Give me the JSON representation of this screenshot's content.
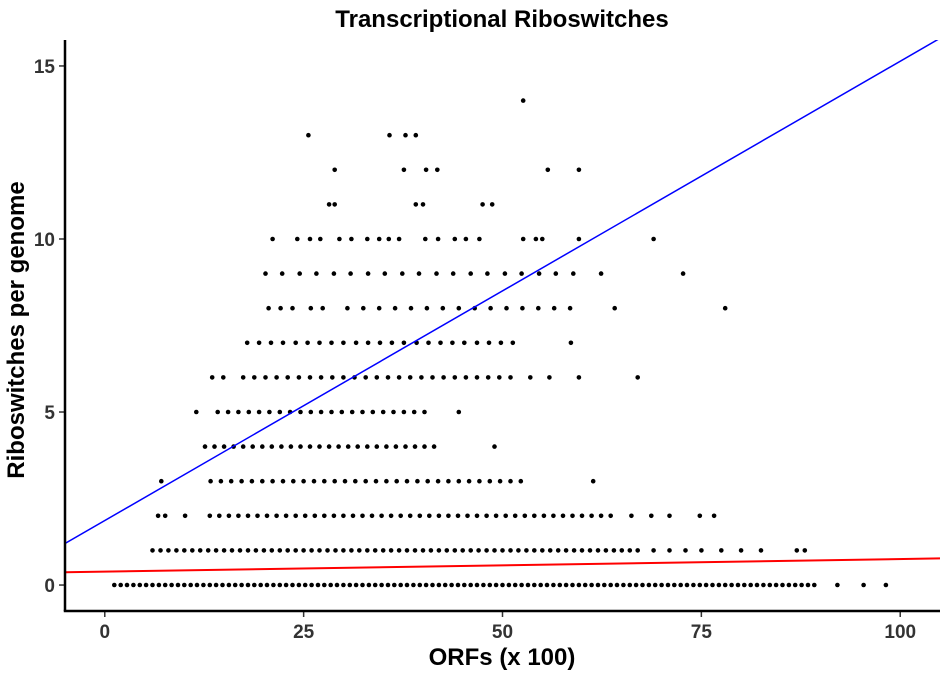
{
  "chart_data": {
    "type": "scatter",
    "title": "Transcriptional Riboswitches",
    "xlabel": "ORFs (x 100)",
    "ylabel": "Riboswitches per genome",
    "xlim": [
      -5,
      105
    ],
    "ylim": [
      -0.75,
      15.75
    ],
    "x_ticks": [
      0,
      25,
      50,
      75,
      100
    ],
    "y_ticks": [
      0,
      5,
      10,
      15
    ],
    "grid": false,
    "legend": "none",
    "point_color": "#000000",
    "lines": [
      {
        "color": "#0000ff",
        "x": [
          -5,
          105
        ],
        "y": [
          1.2,
          15.8
        ]
      },
      {
        "color": "#ff0000",
        "x": [
          -5,
          105
        ],
        "y": [
          0.37,
          0.77
        ]
      }
    ],
    "points": [
      [
        52.6,
        14
      ],
      [
        25.6,
        13
      ],
      [
        35.8,
        13
      ],
      [
        37.8,
        13
      ],
      [
        39.1,
        13
      ],
      [
        28.9,
        12
      ],
      [
        37.6,
        12
      ],
      [
        40.4,
        12
      ],
      [
        41.8,
        12
      ],
      [
        55.7,
        12
      ],
      [
        59.6,
        12
      ],
      [
        28.2,
        11
      ],
      [
        28.9,
        11
      ],
      [
        39.1,
        11
      ],
      [
        40.0,
        11
      ],
      [
        47.5,
        11
      ],
      [
        48.7,
        11
      ],
      [
        21.1,
        10
      ],
      [
        24.2,
        10
      ],
      [
        25.8,
        10
      ],
      [
        27.1,
        10
      ],
      [
        29.5,
        10
      ],
      [
        31.0,
        10
      ],
      [
        33.0,
        10
      ],
      [
        34.5,
        10
      ],
      [
        35.7,
        10
      ],
      [
        37.0,
        10
      ],
      [
        40.3,
        10
      ],
      [
        41.9,
        10
      ],
      [
        44.0,
        10
      ],
      [
        45.4,
        10
      ],
      [
        47.1,
        10
      ],
      [
        52.6,
        10
      ],
      [
        54.2,
        10
      ],
      [
        55.0,
        10
      ],
      [
        59.6,
        10
      ],
      [
        69.0,
        10
      ],
      [
        20.2,
        9
      ],
      [
        22.3,
        9
      ],
      [
        24.5,
        9
      ],
      [
        26.6,
        9
      ],
      [
        28.8,
        9
      ],
      [
        30.9,
        9
      ],
      [
        33.1,
        9
      ],
      [
        35.2,
        9
      ],
      [
        37.4,
        9
      ],
      [
        39.5,
        9
      ],
      [
        41.7,
        9
      ],
      [
        43.8,
        9
      ],
      [
        46.0,
        9
      ],
      [
        48.1,
        9
      ],
      [
        50.3,
        9
      ],
      [
        52.4,
        9
      ],
      [
        54.6,
        9
      ],
      [
        56.7,
        9
      ],
      [
        58.9,
        9
      ],
      [
        62.4,
        9
      ],
      [
        72.7,
        9
      ],
      [
        20.6,
        8
      ],
      [
        22.1,
        8
      ],
      [
        23.6,
        8
      ],
      [
        25.9,
        8
      ],
      [
        27.4,
        8
      ],
      [
        30.5,
        8
      ],
      [
        32.5,
        8
      ],
      [
        34.5,
        8
      ],
      [
        36.5,
        8
      ],
      [
        38.5,
        8
      ],
      [
        40.5,
        8
      ],
      [
        42.5,
        8
      ],
      [
        44.5,
        8
      ],
      [
        46.5,
        8
      ],
      [
        48.5,
        8
      ],
      [
        50.5,
        8
      ],
      [
        52.5,
        8
      ],
      [
        54.5,
        8
      ],
      [
        56.5,
        8
      ],
      [
        58.5,
        8
      ],
      [
        64.1,
        8
      ],
      [
        78.0,
        8
      ],
      [
        17.9,
        7
      ],
      [
        19.4,
        7
      ],
      [
        20.9,
        7
      ],
      [
        22.4,
        7
      ],
      [
        24.0,
        7
      ],
      [
        25.5,
        7
      ],
      [
        27.0,
        7
      ],
      [
        28.5,
        7
      ],
      [
        30.0,
        7
      ],
      [
        31.6,
        7
      ],
      [
        33.1,
        7
      ],
      [
        34.6,
        7
      ],
      [
        36.1,
        7
      ],
      [
        37.6,
        7
      ],
      [
        39.2,
        7
      ],
      [
        40.7,
        7
      ],
      [
        42.2,
        7
      ],
      [
        43.7,
        7
      ],
      [
        45.2,
        7
      ],
      [
        46.8,
        7
      ],
      [
        48.3,
        7
      ],
      [
        49.8,
        7
      ],
      [
        51.3,
        7
      ],
      [
        58.6,
        7
      ],
      [
        13.5,
        6
      ],
      [
        14.9,
        6
      ],
      [
        17.4,
        6
      ],
      [
        18.8,
        6
      ],
      [
        20.2,
        6
      ],
      [
        21.6,
        6
      ],
      [
        23.0,
        6
      ],
      [
        24.4,
        6
      ],
      [
        25.8,
        6
      ],
      [
        27.2,
        6
      ],
      [
        28.6,
        6
      ],
      [
        30.0,
        6
      ],
      [
        31.4,
        6
      ],
      [
        32.8,
        6
      ],
      [
        34.2,
        6
      ],
      [
        35.6,
        6
      ],
      [
        37.0,
        6
      ],
      [
        38.4,
        6
      ],
      [
        39.8,
        6
      ],
      [
        41.2,
        6
      ],
      [
        42.6,
        6
      ],
      [
        44.0,
        6
      ],
      [
        45.4,
        6
      ],
      [
        46.8,
        6
      ],
      [
        48.2,
        6
      ],
      [
        49.6,
        6
      ],
      [
        51.0,
        6
      ],
      [
        53.5,
        6
      ],
      [
        55.9,
        6
      ],
      [
        59.6,
        6
      ],
      [
        67.0,
        6
      ],
      [
        11.5,
        5
      ],
      [
        14.2,
        5
      ],
      [
        15.5,
        5
      ],
      [
        16.8,
        5
      ],
      [
        18.1,
        5
      ],
      [
        19.4,
        5
      ],
      [
        20.7,
        5
      ],
      [
        22.0,
        5
      ],
      [
        23.3,
        5
      ],
      [
        24.6,
        5
      ],
      [
        25.9,
        5
      ],
      [
        27.2,
        5
      ],
      [
        28.5,
        5
      ],
      [
        29.8,
        5
      ],
      [
        31.1,
        5
      ],
      [
        32.4,
        5
      ],
      [
        33.7,
        5
      ],
      [
        35.0,
        5
      ],
      [
        36.3,
        5
      ],
      [
        37.6,
        5
      ],
      [
        38.9,
        5
      ],
      [
        40.2,
        5
      ],
      [
        44.5,
        5
      ],
      [
        12.6,
        4
      ],
      [
        13.8,
        4
      ],
      [
        15.0,
        4
      ],
      [
        16.2,
        4
      ],
      [
        17.4,
        4
      ],
      [
        18.6,
        4
      ],
      [
        19.8,
        4
      ],
      [
        21.0,
        4
      ],
      [
        22.2,
        4
      ],
      [
        23.4,
        4
      ],
      [
        24.6,
        4
      ],
      [
        25.8,
        4
      ],
      [
        27.0,
        4
      ],
      [
        28.2,
        4
      ],
      [
        29.4,
        4
      ],
      [
        30.6,
        4
      ],
      [
        31.8,
        4
      ],
      [
        33.0,
        4
      ],
      [
        34.2,
        4
      ],
      [
        35.4,
        4
      ],
      [
        36.6,
        4
      ],
      [
        37.8,
        4
      ],
      [
        39.0,
        4
      ],
      [
        40.2,
        4
      ],
      [
        41.4,
        4
      ],
      [
        49.0,
        4
      ],
      [
        7.1,
        3
      ],
      [
        13.3,
        3
      ],
      [
        14.6,
        3
      ],
      [
        15.9,
        3
      ],
      [
        17.2,
        3
      ],
      [
        18.5,
        3
      ],
      [
        19.8,
        3
      ],
      [
        21.1,
        3
      ],
      [
        22.4,
        3
      ],
      [
        23.7,
        3
      ],
      [
        25.0,
        3
      ],
      [
        26.3,
        3
      ],
      [
        27.6,
        3
      ],
      [
        28.9,
        3
      ],
      [
        30.2,
        3
      ],
      [
        31.5,
        3
      ],
      [
        32.8,
        3
      ],
      [
        34.1,
        3
      ],
      [
        35.4,
        3
      ],
      [
        36.7,
        3
      ],
      [
        38.0,
        3
      ],
      [
        39.3,
        3
      ],
      [
        40.6,
        3
      ],
      [
        41.9,
        3
      ],
      [
        43.2,
        3
      ],
      [
        44.5,
        3
      ],
      [
        45.8,
        3
      ],
      [
        47.1,
        3
      ],
      [
        48.4,
        3
      ],
      [
        49.7,
        3
      ],
      [
        51.0,
        3
      ],
      [
        52.3,
        3
      ],
      [
        61.4,
        3
      ],
      [
        6.7,
        2
      ],
      [
        7.6,
        2
      ],
      [
        10.1,
        2
      ],
      [
        13.2,
        2
      ],
      [
        14.4,
        2
      ],
      [
        15.6,
        2
      ],
      [
        16.8,
        2
      ],
      [
        18.0,
        2
      ],
      [
        19.2,
        2
      ],
      [
        20.4,
        2
      ],
      [
        21.6,
        2
      ],
      [
        22.8,
        2
      ],
      [
        24.0,
        2
      ],
      [
        25.2,
        2
      ],
      [
        26.4,
        2
      ],
      [
        27.6,
        2
      ],
      [
        28.8,
        2
      ],
      [
        30.0,
        2
      ],
      [
        31.2,
        2
      ],
      [
        32.4,
        2
      ],
      [
        33.6,
        2
      ],
      [
        34.8,
        2
      ],
      [
        36.0,
        2
      ],
      [
        37.2,
        2
      ],
      [
        38.4,
        2
      ],
      [
        39.6,
        2
      ],
      [
        40.8,
        2
      ],
      [
        42.0,
        2
      ],
      [
        43.2,
        2
      ],
      [
        44.4,
        2
      ],
      [
        45.6,
        2
      ],
      [
        46.8,
        2
      ],
      [
        48.0,
        2
      ],
      [
        49.2,
        2
      ],
      [
        50.4,
        2
      ],
      [
        51.6,
        2
      ],
      [
        52.8,
        2
      ],
      [
        54.0,
        2
      ],
      [
        55.2,
        2
      ],
      [
        56.4,
        2
      ],
      [
        57.6,
        2
      ],
      [
        58.8,
        2
      ],
      [
        60.0,
        2
      ],
      [
        61.2,
        2
      ],
      [
        62.4,
        2
      ],
      [
        63.6,
        2
      ],
      [
        66.2,
        2
      ],
      [
        68.7,
        2
      ],
      [
        71.0,
        2
      ],
      [
        74.8,
        2
      ],
      [
        76.6,
        2
      ],
      [
        6.0,
        1
      ],
      [
        7.0,
        1
      ],
      [
        8.0,
        1
      ],
      [
        9.0,
        1
      ],
      [
        10.0,
        1
      ],
      [
        11.0,
        1
      ],
      [
        12.0,
        1
      ],
      [
        13.0,
        1
      ],
      [
        14.0,
        1
      ],
      [
        15.0,
        1
      ],
      [
        16.0,
        1
      ],
      [
        17.0,
        1
      ],
      [
        18.0,
        1
      ],
      [
        19.0,
        1
      ],
      [
        20.0,
        1
      ],
      [
        21.0,
        1
      ],
      [
        22.0,
        1
      ],
      [
        23.0,
        1
      ],
      [
        24.0,
        1
      ],
      [
        25.0,
        1
      ],
      [
        26.0,
        1
      ],
      [
        27.0,
        1
      ],
      [
        28.0,
        1
      ],
      [
        29.0,
        1
      ],
      [
        30.0,
        1
      ],
      [
        31.0,
        1
      ],
      [
        32.0,
        1
      ],
      [
        33.0,
        1
      ],
      [
        34.0,
        1
      ],
      [
        35.0,
        1
      ],
      [
        36.0,
        1
      ],
      [
        37.0,
        1
      ],
      [
        38.0,
        1
      ],
      [
        39.0,
        1
      ],
      [
        40.0,
        1
      ],
      [
        41.0,
        1
      ],
      [
        42.0,
        1
      ],
      [
        43.0,
        1
      ],
      [
        44.0,
        1
      ],
      [
        45.0,
        1
      ],
      [
        46.0,
        1
      ],
      [
        47.0,
        1
      ],
      [
        48.0,
        1
      ],
      [
        49.0,
        1
      ],
      [
        50.0,
        1
      ],
      [
        51.0,
        1
      ],
      [
        52.0,
        1
      ],
      [
        53.0,
        1
      ],
      [
        54.0,
        1
      ],
      [
        55.0,
        1
      ],
      [
        56.0,
        1
      ],
      [
        57.0,
        1
      ],
      [
        58.0,
        1
      ],
      [
        59.0,
        1
      ],
      [
        60.0,
        1
      ],
      [
        61.0,
        1
      ],
      [
        62.0,
        1
      ],
      [
        63.0,
        1
      ],
      [
        64.0,
        1
      ],
      [
        65.0,
        1
      ],
      [
        66.0,
        1
      ],
      [
        67.0,
        1
      ],
      [
        69.0,
        1
      ],
      [
        71.0,
        1
      ],
      [
        73.0,
        1
      ],
      [
        75.0,
        1
      ],
      [
        77.5,
        1
      ],
      [
        80.0,
        1
      ],
      [
        82.5,
        1
      ],
      [
        87.0,
        1
      ],
      [
        88.0,
        1
      ],
      [
        1.2,
        0
      ],
      [
        2.0,
        0
      ],
      [
        2.8,
        0
      ],
      [
        3.6,
        0
      ],
      [
        4.4,
        0
      ],
      [
        5.2,
        0
      ],
      [
        6.0,
        0
      ],
      [
        6.8,
        0
      ],
      [
        7.6,
        0
      ],
      [
        8.4,
        0
      ],
      [
        9.2,
        0
      ],
      [
        10.0,
        0
      ],
      [
        10.8,
        0
      ],
      [
        11.6,
        0
      ],
      [
        12.4,
        0
      ],
      [
        13.2,
        0
      ],
      [
        14.0,
        0
      ],
      [
        14.8,
        0
      ],
      [
        15.6,
        0
      ],
      [
        16.4,
        0
      ],
      [
        17.2,
        0
      ],
      [
        18.0,
        0
      ],
      [
        18.8,
        0
      ],
      [
        19.6,
        0
      ],
      [
        20.4,
        0
      ],
      [
        21.2,
        0
      ],
      [
        22.0,
        0
      ],
      [
        22.8,
        0
      ],
      [
        23.6,
        0
      ],
      [
        24.4,
        0
      ],
      [
        25.2,
        0
      ],
      [
        26.0,
        0
      ],
      [
        26.8,
        0
      ],
      [
        27.6,
        0
      ],
      [
        28.4,
        0
      ],
      [
        29.2,
        0
      ],
      [
        30.0,
        0
      ],
      [
        30.8,
        0
      ],
      [
        31.6,
        0
      ],
      [
        32.4,
        0
      ],
      [
        33.2,
        0
      ],
      [
        34.0,
        0
      ],
      [
        34.8,
        0
      ],
      [
        35.6,
        0
      ],
      [
        36.4,
        0
      ],
      [
        37.2,
        0
      ],
      [
        38.0,
        0
      ],
      [
        38.8,
        0
      ],
      [
        39.6,
        0
      ],
      [
        40.4,
        0
      ],
      [
        41.2,
        0
      ],
      [
        42.0,
        0
      ],
      [
        42.8,
        0
      ],
      [
        43.6,
        0
      ],
      [
        44.4,
        0
      ],
      [
        45.2,
        0
      ],
      [
        46.0,
        0
      ],
      [
        46.8,
        0
      ],
      [
        47.6,
        0
      ],
      [
        48.4,
        0
      ],
      [
        49.2,
        0
      ],
      [
        50.0,
        0
      ],
      [
        50.8,
        0
      ],
      [
        51.6,
        0
      ],
      [
        52.4,
        0
      ],
      [
        53.2,
        0
      ],
      [
        54.0,
        0
      ],
      [
        54.8,
        0
      ],
      [
        55.6,
        0
      ],
      [
        56.4,
        0
      ],
      [
        57.2,
        0
      ],
      [
        58.0,
        0
      ],
      [
        58.8,
        0
      ],
      [
        59.6,
        0
      ],
      [
        60.4,
        0
      ],
      [
        61.2,
        0
      ],
      [
        62.0,
        0
      ],
      [
        62.8,
        0
      ],
      [
        63.6,
        0
      ],
      [
        64.4,
        0
      ],
      [
        65.2,
        0
      ],
      [
        66.0,
        0
      ],
      [
        66.8,
        0
      ],
      [
        67.6,
        0
      ],
      [
        68.4,
        0
      ],
      [
        69.2,
        0
      ],
      [
        70.0,
        0
      ],
      [
        70.8,
        0
      ],
      [
        71.6,
        0
      ],
      [
        72.4,
        0
      ],
      [
        73.2,
        0
      ],
      [
        74.0,
        0
      ],
      [
        74.8,
        0
      ],
      [
        75.6,
        0
      ],
      [
        76.4,
        0
      ],
      [
        77.2,
        0
      ],
      [
        78.0,
        0
      ],
      [
        78.8,
        0
      ],
      [
        79.6,
        0
      ],
      [
        80.4,
        0
      ],
      [
        81.2,
        0
      ],
      [
        82.0,
        0
      ],
      [
        82.8,
        0
      ],
      [
        83.6,
        0
      ],
      [
        84.4,
        0
      ],
      [
        85.2,
        0
      ],
      [
        86.0,
        0
      ],
      [
        86.8,
        0
      ],
      [
        87.6,
        0
      ],
      [
        88.4,
        0
      ],
      [
        89.2,
        0
      ],
      [
        92.1,
        0
      ],
      [
        95.4,
        0
      ],
      [
        98.2,
        0
      ]
    ]
  }
}
